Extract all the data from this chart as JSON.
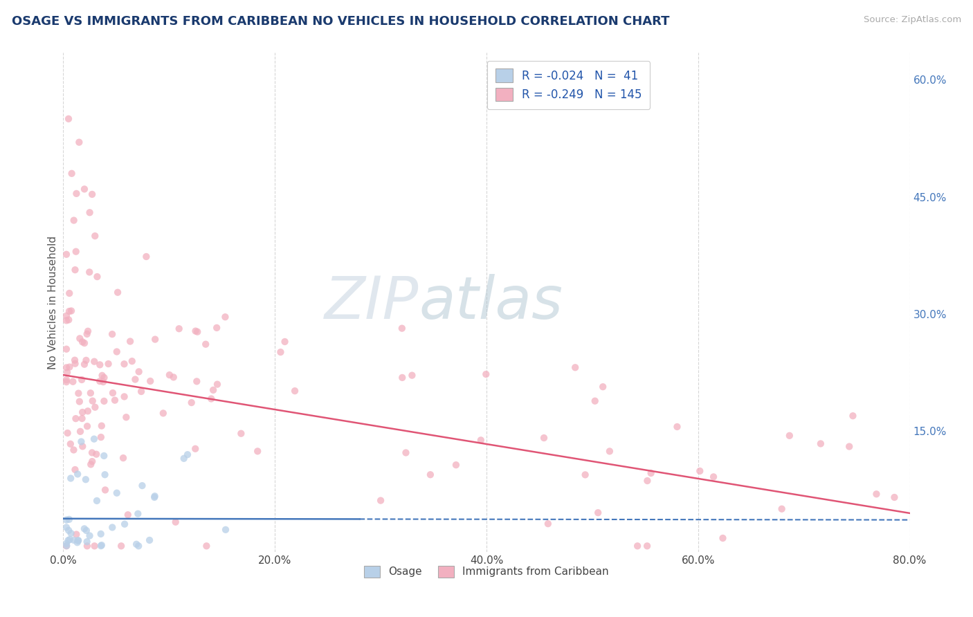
{
  "title": "OSAGE VS IMMIGRANTS FROM CARIBBEAN NO VEHICLES IN HOUSEHOLD CORRELATION CHART",
  "source": "Source: ZipAtlas.com",
  "ylabel": "No Vehicles in Household",
  "xlim": [
    0.0,
    0.8
  ],
  "ylim": [
    -0.005,
    0.635
  ],
  "xtick_labels": [
    "0.0%",
    "20.0%",
    "40.0%",
    "60.0%",
    "80.0%"
  ],
  "xtick_vals": [
    0.0,
    0.2,
    0.4,
    0.6,
    0.8
  ],
  "ytick_labels_right": [
    "15.0%",
    "30.0%",
    "45.0%",
    "60.0%"
  ],
  "ytick_vals_right": [
    0.15,
    0.3,
    0.45,
    0.6
  ],
  "legend_label1": "Osage",
  "legend_label2": "Immigrants from Caribbean",
  "r1": -0.024,
  "n1": 41,
  "r2": -0.249,
  "n2": 145,
  "color_blue": "#b8d0e8",
  "color_pink": "#f2b0c0",
  "color_blue_line": "#4477bb",
  "color_pink_line": "#e05575",
  "color_title": "#1a3a6e",
  "color_legend_text": "#2255aa",
  "watermark_color": "#d5dfe8",
  "background_color": "#ffffff",
  "grid_color": "#cccccc",
  "carib_line_start_y": 0.222,
  "carib_line_end_y": 0.045,
  "osage_line_y": 0.038
}
